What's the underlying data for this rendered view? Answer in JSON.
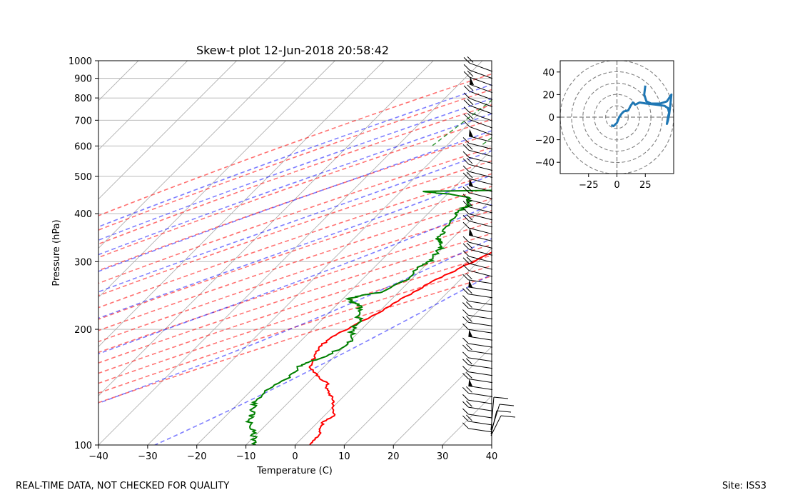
{
  "chart_data": [
    {
      "type": "line",
      "subtype": "skew-t log-p diagram",
      "title": "Skew-t plot 12-Jun-2018 20:58:42",
      "xlabel": "Temperature (C)",
      "ylabel": "Pressure (hPa)",
      "xlim": [
        -40,
        40
      ],
      "ylim": [
        1000,
        100
      ],
      "yscale": "log",
      "x_ticks": [
        -40,
        -30,
        -20,
        -10,
        0,
        10,
        20,
        30,
        40
      ],
      "y_ticks": [
        1000,
        900,
        800,
        700,
        600,
        500,
        400,
        300,
        200,
        100
      ],
      "grid": true,
      "series": [
        {
          "color": "#ff0000",
          "points": [
            [
              950,
              30
            ],
            [
              930,
              27.5
            ],
            [
              900,
              25
            ],
            [
              875,
              23
            ],
            [
              860,
              22
            ],
            [
              845,
              21.5
            ],
            [
              830,
              24
            ],
            [
              815,
              26.5
            ],
            [
              800,
              27.5
            ],
            [
              780,
              27
            ],
            [
              750,
              25
            ],
            [
              720,
              22.5
            ],
            [
              690,
              20
            ],
            [
              660,
              18
            ],
            [
              630,
              16.5
            ],
            [
              600,
              15
            ],
            [
              580,
              14.5
            ],
            [
              550,
              13
            ],
            [
              520,
              12.5
            ],
            [
              500,
              12
            ],
            [
              480,
              12
            ],
            [
              460,
              11.8
            ],
            [
              440,
              11.5
            ],
            [
              420,
              11
            ],
            [
              400,
              9
            ],
            [
              380,
              7
            ],
            [
              350,
              4
            ],
            [
              330,
              2
            ],
            [
              300,
              -1
            ],
            [
              280,
              -3.5
            ],
            [
              260,
              -6
            ],
            [
              240,
              -8
            ],
            [
              220,
              -10
            ],
            [
              200,
              -13
            ],
            [
              190,
              -14.5
            ],
            [
              180,
              -15
            ],
            [
              170,
              -14
            ],
            [
              160,
              -13
            ],
            [
              155,
              -11
            ],
            [
              150,
              -9
            ],
            [
              145,
              -6
            ],
            [
              140,
              -5
            ],
            [
              135,
              -3
            ],
            [
              130,
              -1
            ],
            [
              125,
              0
            ],
            [
              120,
              2
            ],
            [
              115,
              1
            ],
            [
              110,
              2
            ],
            [
              105,
              3
            ],
            [
              100,
              3
            ]
          ]
        },
        {
          "color": "#008000",
          "points": [
            [
              950,
              14
            ],
            [
              920,
              15
            ],
            [
              890,
              15.5
            ],
            [
              860,
              15.8
            ],
            [
              850,
              18
            ],
            [
              835,
              18
            ],
            [
              830,
              14
            ],
            [
              820,
              12
            ],
            [
              810,
              -7
            ],
            [
              800,
              -8
            ],
            [
              795,
              -9
            ],
            [
              785,
              -9.5
            ],
            [
              775,
              -7
            ],
            [
              760,
              -5
            ],
            [
              740,
              -3
            ],
            [
              720,
              -2
            ],
            [
              700,
              -1
            ],
            [
              680,
              0
            ],
            [
              660,
              1
            ],
            [
              640,
              2
            ],
            [
              630,
              2
            ],
            [
              615,
              3
            ],
            [
              605,
              4
            ],
            [
              595,
              0
            ],
            [
              590,
              10
            ],
            [
              575,
              12
            ],
            [
              550,
              13
            ],
            [
              520,
              12
            ],
            [
              500,
              8
            ],
            [
              490,
              5
            ],
            [
              480,
              4
            ],
            [
              470,
              2
            ],
            [
              462,
              -3
            ],
            [
              457,
              -26
            ],
            [
              450,
              -20
            ],
            [
              440,
              -15
            ],
            [
              430,
              -14
            ],
            [
              420,
              -13.5
            ],
            [
              410,
              -14
            ],
            [
              400,
              -14
            ],
            [
              380,
              -14
            ],
            [
              360,
              -13
            ],
            [
              345,
              -13
            ],
            [
              340,
              -12
            ],
            [
              335,
              -11
            ],
            [
              325,
              -10.5
            ],
            [
              310,
              -10
            ],
            [
              300,
              -10
            ],
            [
              290,
              -11
            ],
            [
              270,
              -11
            ],
            [
              250,
              -13
            ],
            [
              245,
              -17
            ],
            [
              240,
              -19
            ],
            [
              235,
              -17
            ],
            [
              230,
              -15
            ],
            [
              220,
              -14
            ],
            [
              210,
              -12
            ],
            [
              200,
              -12
            ],
            [
              190,
              -10
            ],
            [
              180,
              -10
            ],
            [
              170,
              -12
            ],
            [
              165,
              -14
            ],
            [
              160,
              -15
            ],
            [
              150,
              -15
            ],
            [
              140,
              -17
            ],
            [
              130,
              -17
            ],
            [
              125,
              -16
            ],
            [
              120,
              -15
            ],
            [
              115,
              -14
            ],
            [
              110,
              -12
            ],
            [
              105,
              -10
            ],
            [
              100,
              -8
            ]
          ]
        }
      ],
      "reference_lines": {
        "dry_adiabats": {
          "color": "#ff0000",
          "style": "dashed"
        },
        "moist_adiabats": {
          "color": "#0000ff",
          "style": "dashed"
        },
        "mixing_ratio_lines": {
          "color": "#008000",
          "style": "dashed"
        },
        "isotherms": {
          "color": "#808080",
          "style": "solid"
        }
      },
      "wind_barbs": {
        "side": "right",
        "color": "#000000"
      }
    },
    {
      "type": "line",
      "subtype": "hodograph",
      "xlim": [
        -50,
        50
      ],
      "ylim": [
        -50,
        50
      ],
      "x_ticks": [
        -25,
        0,
        25
      ],
      "y_ticks": [
        -40,
        -20,
        0,
        20,
        40
      ],
      "range_rings": [
        10,
        20,
        30,
        40,
        50
      ],
      "color": "#1f77b4",
      "points": [
        [
          -5,
          -7
        ],
        [
          -3,
          -8
        ],
        [
          0,
          -5
        ],
        [
          2,
          0
        ],
        [
          4,
          3
        ],
        [
          6,
          5
        ],
        [
          10,
          6
        ],
        [
          12,
          10
        ],
        [
          14,
          13
        ],
        [
          16,
          11
        ],
        [
          20,
          13
        ],
        [
          26,
          12
        ],
        [
          35,
          11
        ],
        [
          42,
          10
        ],
        [
          45,
          8
        ],
        [
          46,
          4
        ],
        [
          45,
          0
        ],
        [
          44,
          -6
        ],
        [
          45,
          -3
        ],
        [
          46,
          2
        ],
        [
          47,
          10
        ],
        [
          48,
          20
        ],
        [
          44,
          14
        ],
        [
          38,
          12
        ],
        [
          30,
          12
        ],
        [
          26,
          14
        ],
        [
          24,
          20
        ],
        [
          25,
          28
        ]
      ]
    }
  ],
  "footer": {
    "left": "REAL-TIME DATA, NOT CHECKED FOR QUALITY",
    "right": "Site: ISS3"
  }
}
